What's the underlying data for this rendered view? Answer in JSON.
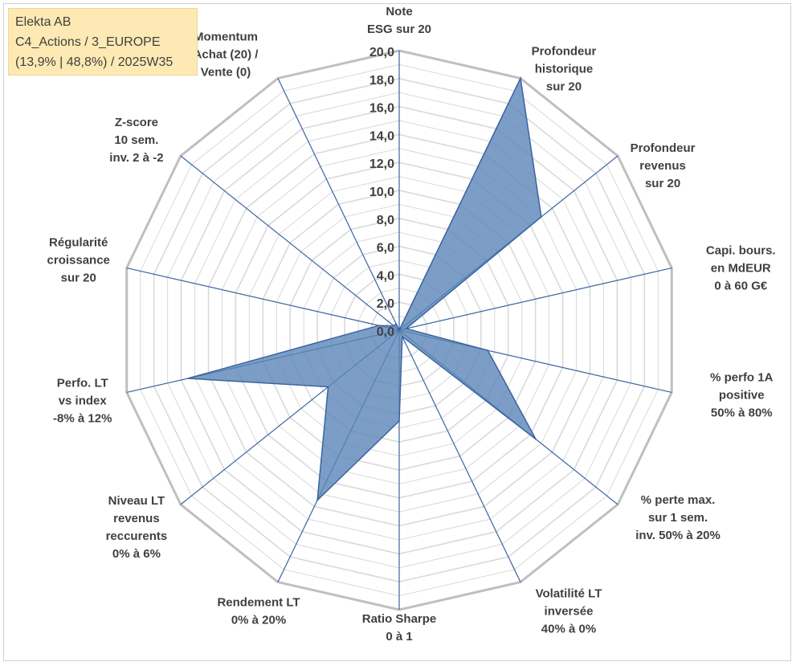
{
  "info": {
    "line1": "Elekta AB",
    "line2": "C4_Actions / 3_EUROPE",
    "line3": "(13,9% | 48,8%) / 2025W35"
  },
  "chart_data": {
    "type": "radar",
    "rmin": 0,
    "rmax": 20,
    "step": 1,
    "tick_labels": [
      "0,0",
      "2,0",
      "4,0",
      "6,0",
      "8,0",
      "10,0",
      "12,0",
      "14,0",
      "16,0",
      "18,0",
      "20,0"
    ],
    "axes": [
      [
        "Note",
        "ESG sur 20"
      ],
      [
        "Profondeur",
        "historique",
        "sur 20"
      ],
      [
        "Profondeur",
        "revenus",
        "sur 20"
      ],
      [
        "Capi. bours.",
        "en MdEUR",
        "0 à 60 G€"
      ],
      [
        "% perfo 1A",
        "positive",
        "50% à 80%"
      ],
      [
        "% perte max.",
        "sur 1 sem.",
        "inv. 50% à 20%"
      ],
      [
        "Volatilité LT",
        "inversée",
        "40% à 0%"
      ],
      [
        "Ratio Sharpe",
        "0 à 1"
      ],
      [
        "Rendement LT",
        "0% à 20%"
      ],
      [
        "Niveau LT",
        "revenus",
        "reccurents",
        "0% à 6%"
      ],
      [
        "Perfo. LT",
        "vs index",
        "-8% à 12%"
      ],
      [
        "Régularité",
        "croissance",
        "sur 20"
      ],
      [
        "Z-score",
        "10 sem.",
        "inv. 2 à -2"
      ],
      [
        "Momentum",
        "Achat (20) /",
        "Vente (0)"
      ]
    ],
    "series": [
      {
        "values": [
          0,
          20,
          13,
          0.5,
          6.5,
          12.5,
          0.5,
          6.5,
          13.5,
          6.5,
          15.5,
          1.5,
          0.5,
          0.5
        ]
      }
    ],
    "fill_color": "#5b86b8",
    "fill_opacity": 0.8,
    "edge_color": "#3a64a0",
    "spoke_color": "#3a64a0",
    "grid_color": "#d9d9d9",
    "outer_grid_color": "#bfbfbf"
  }
}
